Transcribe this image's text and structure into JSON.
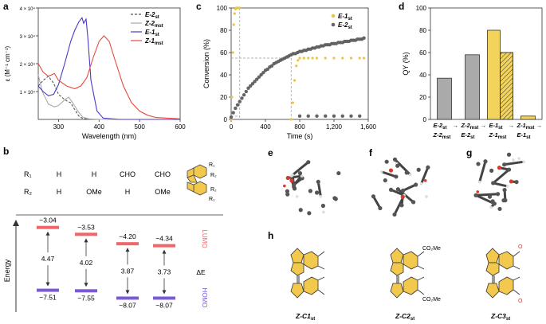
{
  "panel_labels": {
    "a": "a",
    "b": "b",
    "c": "c",
    "d": "d",
    "e": "e",
    "f": "f",
    "g": "g",
    "h": "h"
  },
  "chart_data": [
    {
      "id": "a",
      "type": "line",
      "xlabel": "Wavelength (nm)",
      "ylabel": "ε (M⁻¹ cm⁻¹)",
      "xlim": [
        250,
        600
      ],
      "ylim": [
        0,
        40000
      ],
      "x_ticks": [
        300,
        400,
        500,
        600
      ],
      "y_ticks": [
        {
          "v": 10000,
          "label": "1 × 10⁴"
        },
        {
          "v": 20000,
          "label": "2 × 10⁴"
        },
        {
          "v": 30000,
          "label": "3 × 10⁴"
        },
        {
          "v": 40000,
          "label": "4 × 10⁴"
        }
      ],
      "legend": [
        "E-2st",
        "Z-2mst",
        "E-1st",
        "Z-1mst"
      ],
      "series": [
        {
          "name": "E-2st",
          "color": "#555555",
          "dash": "3,2",
          "x": [
            250,
            262,
            275,
            288,
            300,
            312,
            322,
            330,
            340,
            350,
            360,
            375,
            400,
            450,
            600
          ],
          "y": [
            12000,
            14000,
            15500,
            13000,
            9000,
            7500,
            6500,
            6000,
            3500,
            1200,
            300,
            100,
            0,
            0,
            0
          ]
        },
        {
          "name": "Z-2mst",
          "color": "#aaaaaa",
          "dash": "",
          "x": [
            250,
            260,
            275,
            290,
            300,
            315,
            325,
            335,
            350,
            360,
            375,
            400,
            450,
            600
          ],
          "y": [
            16000,
            10000,
            5500,
            4500,
            5000,
            7000,
            8000,
            6000,
            2500,
            800,
            200,
            0,
            0,
            0
          ]
        },
        {
          "name": "E-1st",
          "color": "#4b38c8",
          "dash": "",
          "x": [
            250,
            262,
            275,
            288,
            300,
            315,
            330,
            340,
            350,
            358,
            362,
            368,
            372,
            380,
            395,
            410,
            450,
            600
          ],
          "y": [
            12000,
            10000,
            8500,
            9000,
            12500,
            20000,
            28000,
            32000,
            35000,
            36500,
            34500,
            36000,
            30000,
            14000,
            3000,
            500,
            0,
            0
          ]
        },
        {
          "name": "Z-1mst",
          "color": "#e84a3c",
          "dash": "",
          "x": [
            250,
            262,
            275,
            290,
            300,
            320,
            340,
            355,
            370,
            385,
            400,
            412,
            425,
            440,
            460,
            480,
            500,
            520,
            540,
            600
          ],
          "y": [
            20000,
            17000,
            15500,
            16500,
            14000,
            12000,
            11000,
            12000,
            15000,
            22000,
            28000,
            30000,
            28000,
            21000,
            12000,
            6000,
            3000,
            1500,
            700,
            200
          ]
        }
      ]
    },
    {
      "id": "c",
      "type": "scatter",
      "xlabel": "Time (s)",
      "ylabel": "Conversion (%)",
      "xlim": [
        0,
        1600
      ],
      "ylim": [
        0,
        100
      ],
      "x_ticks": [
        0,
        400,
        800,
        1200,
        1600
      ],
      "x_tick_labels": [
        "0",
        "400",
        "800",
        "1,200",
        "1,600"
      ],
      "y_ticks": [
        0,
        20,
        40,
        60,
        80,
        100
      ],
      "legend": [
        "E-1st",
        "E-2st"
      ],
      "series": [
        {
          "name": "E-1st",
          "color": "#e8c44a",
          "x": [
            0,
            10,
            20,
            30,
            40,
            50,
            60,
            70,
            80,
            90,
            100,
            700,
            720,
            740,
            760,
            780,
            800,
            850,
            900,
            950,
            1000,
            1100,
            1200,
            1300,
            1400,
            1500,
            1550
          ],
          "y": [
            0,
            20,
            60,
            85,
            95,
            99,
            100,
            100,
            100,
            100,
            100,
            0,
            15,
            35,
            48,
            53,
            55,
            55,
            55,
            55,
            55,
            55,
            55,
            55,
            55,
            55,
            55
          ]
        },
        {
          "name": "E-2st",
          "color": "#666666",
          "x": [
            0,
            25,
            50,
            75,
            100,
            125,
            150,
            175,
            200,
            225,
            250,
            275,
            300,
            325,
            350,
            375,
            400,
            425,
            450,
            475,
            500,
            525,
            550,
            575,
            600,
            625,
            650,
            675,
            700,
            725,
            750,
            775,
            800,
            825,
            850,
            875,
            900,
            925,
            950,
            975,
            1000,
            1025,
            1050,
            1075,
            1100,
            1125,
            1150,
            1175,
            1200,
            1225,
            1250,
            1275,
            1300,
            1325,
            1350,
            1375,
            1400,
            1425,
            1450,
            1475,
            1500,
            1525,
            1550,
            800,
            900,
            1000,
            1100,
            1200,
            1300,
            1400,
            1500
          ],
          "y": [
            2,
            6,
            10,
            13,
            16,
            19,
            22,
            25,
            28,
            30,
            32,
            34,
            36,
            38,
            40,
            42,
            44,
            45,
            47,
            48,
            50,
            51,
            52,
            53,
            54,
            55,
            56,
            57,
            58,
            59,
            59,
            60,
            61,
            61,
            62,
            62,
            63,
            63,
            64,
            64,
            65,
            65,
            66,
            66,
            67,
            67,
            67,
            68,
            68,
            68,
            69,
            69,
            69,
            70,
            70,
            70,
            71,
            71,
            71,
            72,
            72,
            72,
            73,
            3,
            3,
            3,
            3,
            3,
            3,
            3,
            3
          ]
        }
      ]
    },
    {
      "id": "d",
      "type": "bar",
      "ylabel": "QY (%)",
      "ylim": [
        0,
        100
      ],
      "y_ticks": [
        0,
        20,
        40,
        60,
        80,
        100
      ],
      "categories": [
        "E-2st → Z-2mst",
        "Z-2mst → E-2st",
        "E-1st → Z-1mst",
        "Z-1mst → E-1st"
      ],
      "series": [
        {
          "name": "main",
          "values": [
            37,
            58,
            80,
            3
          ],
          "colors": [
            "#aaaaaa",
            "#aaaaaa",
            "#f2d45c",
            "#f2d45c"
          ]
        },
        {
          "name": "hatched",
          "values": [
            null,
            null,
            60,
            null
          ]
        }
      ]
    }
  ],
  "panel_b": {
    "r1_label": "R₁",
    "r2_label": "R₂",
    "columns": [
      {
        "r1": "H",
        "r2": "H",
        "lumo": "−3.04",
        "gap": "4.47",
        "homo": "−7.51",
        "lumo_v": -3.04,
        "homo_v": -7.51
      },
      {
        "r1": "H",
        "r2": "OMe",
        "lumo": "−3.53",
        "gap": "4.02",
        "homo": "−7.55",
        "lumo_v": -3.53,
        "homo_v": -7.55
      },
      {
        "r1": "CHO",
        "r2": "H",
        "lumo": "−4.20",
        "gap": "3.87",
        "homo": "−8.07",
        "lumo_v": -4.2,
        "homo_v": -8.07
      },
      {
        "r1": "CHO",
        "r2": "OMe",
        "lumo": "−4.34",
        "gap": "3.73",
        "homo": "−8.07",
        "lumo_v": -4.34,
        "homo_v": -8.07
      }
    ],
    "energy_label": "Energy",
    "lumo_label": "LUMO",
    "homo_label": "HOMO",
    "delta_e_label": "ΔE",
    "struct_r1_top": "R₁",
    "struct_r2_top": "R₂",
    "struct_r2_bot": "R₂",
    "struct_r1_bot": "R₁",
    "lumo_color": "#f0666a",
    "homo_color": "#7b5ad8"
  },
  "panel_h": {
    "labels": [
      "Z-C1st",
      "Z-C2st",
      "Z-C3st"
    ],
    "co2me": "CO₂Me",
    "o": "O"
  }
}
